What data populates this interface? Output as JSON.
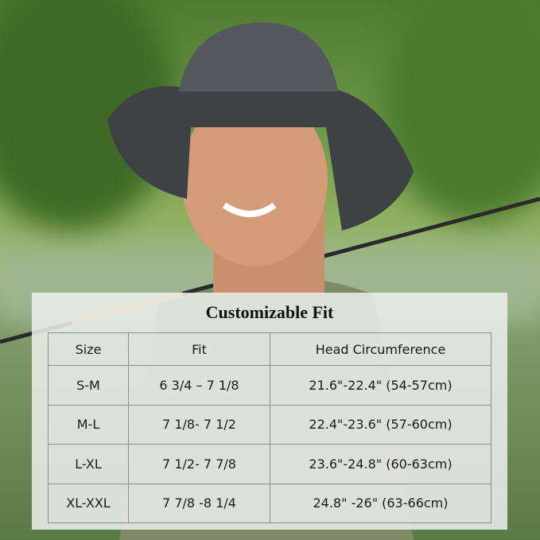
{
  "title": "Customizable Fit",
  "table": {
    "headers": [
      "Size",
      "Fit",
      "Head Circumference"
    ],
    "rows": [
      [
        "S-M",
        "6 3/4 – 7 1/8",
        "21.6\"-22.4\"  (54-57cm)"
      ],
      [
        "M-L",
        "7 1/8- 7 1/2",
        "22.4\"-23.6\"  (57-60cm)"
      ],
      [
        "L-XL",
        "7 1/2-  7 7/8",
        "23.6\"-24.8\"  (60-63cm)"
      ],
      [
        "XL-XXL",
        "7 7/8 -8 1/4",
        "24.8\" -26\"  (63-66cm)"
      ]
    ]
  },
  "colors": {
    "hat": "#3f4245",
    "foliage": "#5f8a3c",
    "panel": "#ecf0ec"
  }
}
